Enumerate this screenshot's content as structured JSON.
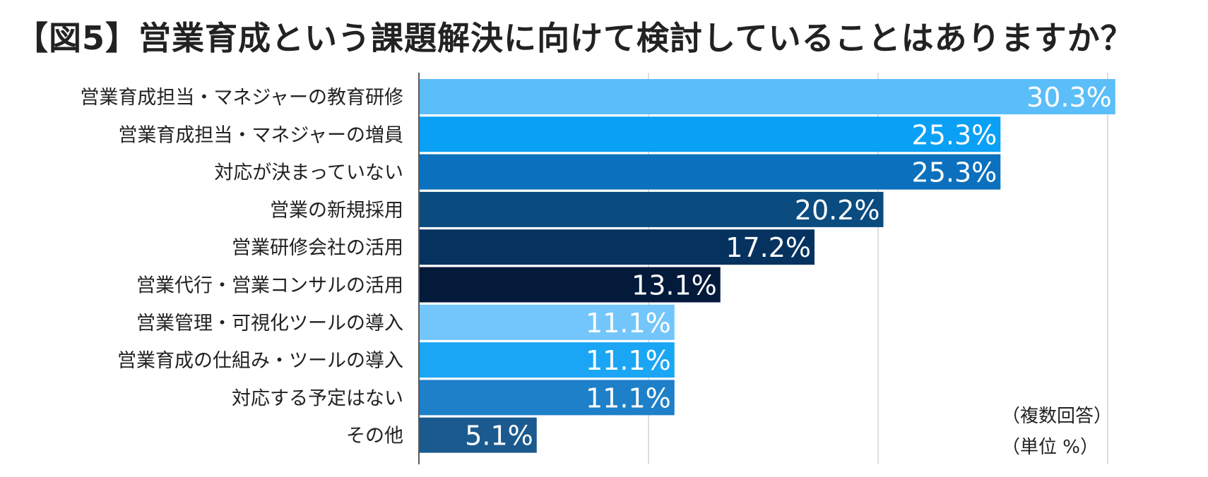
{
  "chart_data": {
    "type": "bar",
    "orientation": "horizontal",
    "title": "【図5】営業育成という課題解決に向けて検討していることはありますか？",
    "categories": [
      "営業育成担当・マネジャーの教育研修",
      "営業育成担当・マネジャーの増員",
      "対応が決まっていない",
      "営業の新規採用",
      "営業研修会社の活用",
      "営業代行・営業コンサルの活用",
      "営業管理・可視化ツールの導入",
      "営業育成の仕組み・ツールの導入",
      "対応する予定はない",
      "その他"
    ],
    "values": [
      30.3,
      25.3,
      25.3,
      20.2,
      17.2,
      13.1,
      11.1,
      11.1,
      11.1,
      5.1
    ],
    "value_labels": [
      "30.3%",
      "25.3%",
      "25.3%",
      "20.2%",
      "17.2%",
      "13.1%",
      "11.1%",
      "11.1%",
      "11.1%",
      "5.1%"
    ],
    "colors": [
      "#5bbef9",
      "#0aa0f5",
      "#0b70bd",
      "#0a4b80",
      "#063260",
      "#041a3a",
      "#72c6fb",
      "#1aa6f4",
      "#1d80c8",
      "#1b5a8e"
    ],
    "xlim": [
      0,
      30
    ],
    "gridlines": [
      10,
      20,
      30
    ],
    "grid": true,
    "notes": [
      "（複数回答）",
      "（単位 %）"
    ]
  }
}
